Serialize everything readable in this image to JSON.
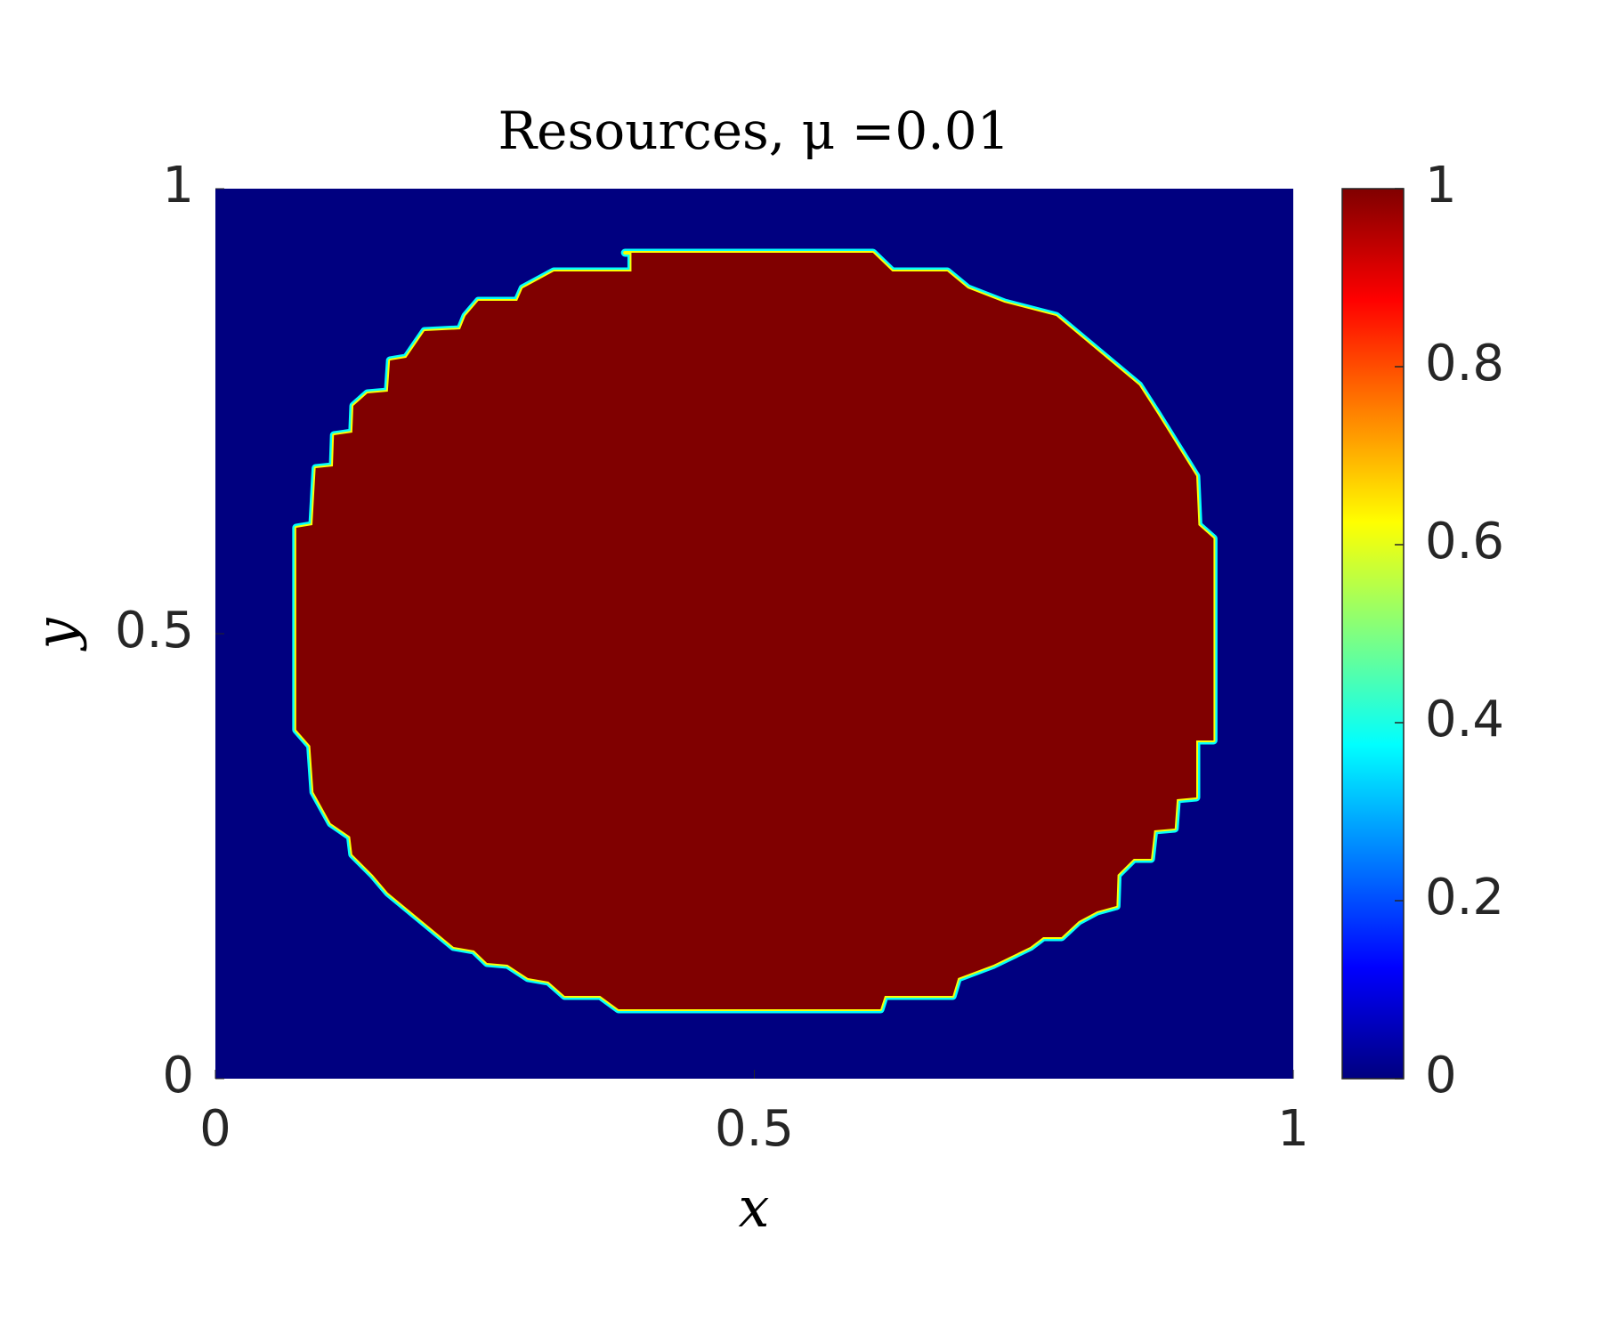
{
  "chart_data": {
    "type": "heatmap",
    "title": "Resources, μ =0.01",
    "xlabel": "x",
    "ylabel": "y",
    "xlim": [
      0,
      1
    ],
    "ylim": [
      0,
      1
    ],
    "xticks": [
      0,
      0.5,
      1
    ],
    "yticks": [
      0,
      0.5,
      1
    ],
    "colormap": "jet",
    "clim": [
      0,
      1
    ],
    "colorbar_ticks": [
      0,
      0.2,
      0.4,
      0.6,
      0.8,
      1
    ],
    "background": 0,
    "region": {
      "value": 1,
      "x": [
        0.38,
        0.61,
        0.628,
        0.679,
        0.698,
        0.732,
        0.78,
        0.857,
        0.874,
        0.892,
        0.91,
        0.912,
        0.926,
        0.926,
        0.91,
        0.91,
        0.892,
        0.89,
        0.871,
        0.868,
        0.852,
        0.837,
        0.836,
        0.818,
        0.801,
        0.785,
        0.768,
        0.756,
        0.722,
        0.689,
        0.684,
        0.621,
        0.617,
        0.374,
        0.357,
        0.324,
        0.309,
        0.29,
        0.271,
        0.252,
        0.24,
        0.221,
        0.16,
        0.146,
        0.127,
        0.125,
        0.107,
        0.091,
        0.088,
        0.075,
        0.075,
        0.09,
        0.093,
        0.109,
        0.11,
        0.127,
        0.128,
        0.141,
        0.16,
        0.162,
        0.177,
        0.194,
        0.227,
        0.232,
        0.244,
        0.28,
        0.285,
        0.314,
        0.386,
        0.386
      ],
      "y": [
        0.928,
        0.928,
        0.907,
        0.907,
        0.888,
        0.872,
        0.857,
        0.779,
        0.747,
        0.712,
        0.677,
        0.622,
        0.607,
        0.38,
        0.38,
        0.316,
        0.314,
        0.281,
        0.279,
        0.247,
        0.247,
        0.229,
        0.194,
        0.188,
        0.177,
        0.159,
        0.159,
        0.148,
        0.128,
        0.113,
        0.093,
        0.093,
        0.078,
        0.078,
        0.093,
        0.093,
        0.109,
        0.113,
        0.128,
        0.13,
        0.144,
        0.148,
        0.209,
        0.229,
        0.252,
        0.272,
        0.287,
        0.322,
        0.374,
        0.392,
        0.619,
        0.622,
        0.686,
        0.688,
        0.723,
        0.726,
        0.756,
        0.77,
        0.772,
        0.807,
        0.81,
        0.84,
        0.842,
        0.857,
        0.874,
        0.874,
        0.888,
        0.907,
        0.907,
        0.928
      ]
    }
  }
}
